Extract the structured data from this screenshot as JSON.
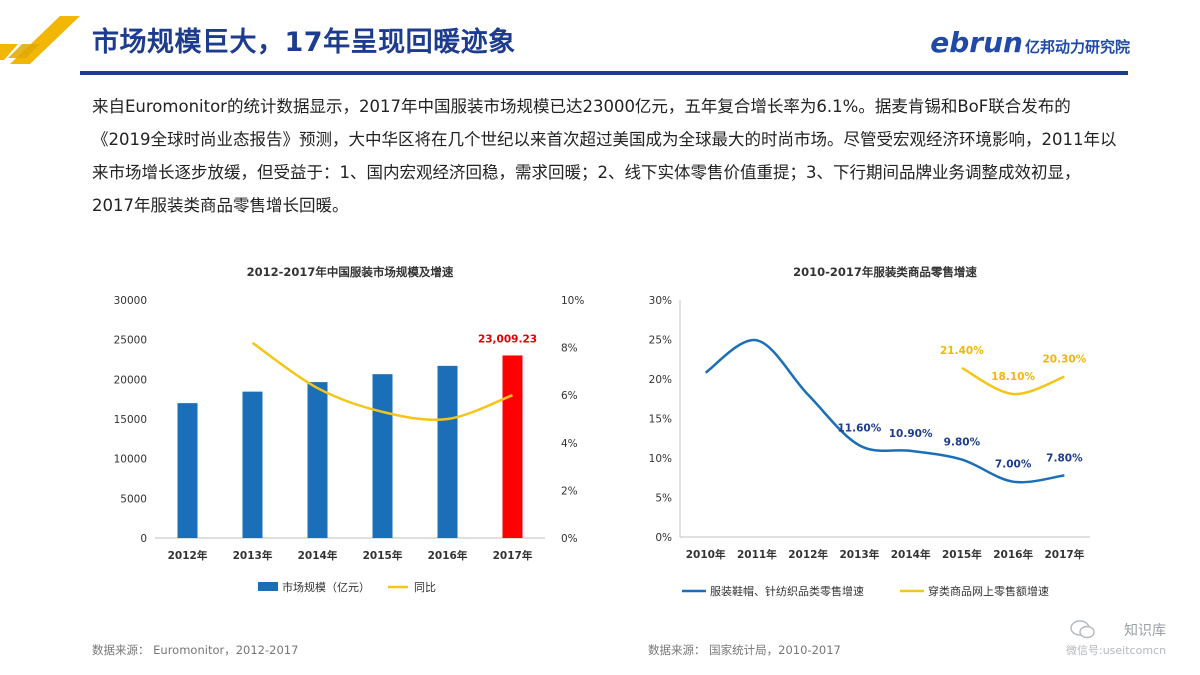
{
  "header": {
    "title": "市场规模巨大，17年呈现回暖迹象",
    "brand": {
      "word": "ebrun",
      "cn": "亿邦动力研究院"
    },
    "colors": {
      "title": "#1d3c8f",
      "rule": "#1d3c8f",
      "logo_gold": "#f2b705"
    }
  },
  "paragraph": "来自Euromonitor的统计数据显示，2017年中国服装市场规模已达23000亿元，五年复合增长率为6.1%。据麦肯锡和BoF联合发布的《2019全球时尚业态报告》预测，大中华区将在几个世纪以来首次超过美国成为全球最大的时尚市场。尽管受宏观经济环境影响，2011年以来市场增长逐步放缓，但受益于：1、国内宏观经济回稳，需求回暖；2、线下实体零售价值重提；3、下行期间品牌业务调整成效初显，2017年服装类商品零售增长回暖。",
  "sources": {
    "left": "数据来源： Euromonitor，2012-2017",
    "right": "数据来源： 国家统计局，2010-2017"
  },
  "watermark": {
    "line1": "知识库",
    "line2": "微信号:useitcomcn"
  },
  "chart_data": [
    {
      "type": "bar",
      "title": "2012-2017年中国服装市场规模及增速",
      "categories": [
        "2012年",
        "2013年",
        "2014年",
        "2015年",
        "2016年",
        "2017年"
      ],
      "series": [
        {
          "name": "市场规模（亿元）",
          "type": "bar",
          "axis": "left",
          "values": [
            17000,
            18450,
            19650,
            20650,
            21700,
            23009.23
          ],
          "color": "#1a6fb8",
          "highlight_color": "#ff0000"
        },
        {
          "name": "同比",
          "type": "line",
          "axis": "right",
          "values": [
            null,
            8.2,
            6.3,
            5.3,
            5.0,
            6.0
          ],
          "color": "#f5c518"
        }
      ],
      "data_labels": [
        "",
        "",
        "",
        "",
        "",
        "23,009.23"
      ],
      "y_left": {
        "min": 0,
        "max": 30000,
        "ticks": [
          "0",
          "5000",
          "10000",
          "15000",
          "20000",
          "25000",
          "30000"
        ]
      },
      "y_right": {
        "min": 0,
        "max": 10,
        "ticks": [
          "0%",
          "2%",
          "4%",
          "6%",
          "8%",
          "10%"
        ]
      },
      "legend": "bottom",
      "grid": false
    },
    {
      "type": "line",
      "title": "2010-2017年服装类商品零售增速",
      "categories": [
        "2010年",
        "2011年",
        "2012年",
        "2013年",
        "2014年",
        "2015年",
        "2016年",
        "2017年"
      ],
      "series": [
        {
          "name": "服装鞋帽、针纺织品类零售增速",
          "color": "#1a6fb8",
          "values": [
            20.8,
            24.9,
            18.0,
            11.6,
            10.9,
            9.8,
            7.0,
            7.8
          ],
          "labels": [
            null,
            null,
            null,
            "11.60%",
            "10.90%",
            "9.80%",
            "7.00%",
            "7.80%"
          ]
        },
        {
          "name": "穿类商品网上零售额增速",
          "color": "#f5c518",
          "values": [
            null,
            null,
            null,
            null,
            null,
            21.4,
            18.1,
            20.3
          ],
          "labels": [
            null,
            null,
            null,
            null,
            null,
            "21.40%",
            "18.10%",
            "20.30%"
          ]
        }
      ],
      "y": {
        "min": 0,
        "max": 30,
        "ticks": [
          "0%",
          "5%",
          "10%",
          "15%",
          "20%",
          "25%",
          "30%"
        ]
      },
      "legend": "bottom",
      "grid": false
    }
  ]
}
